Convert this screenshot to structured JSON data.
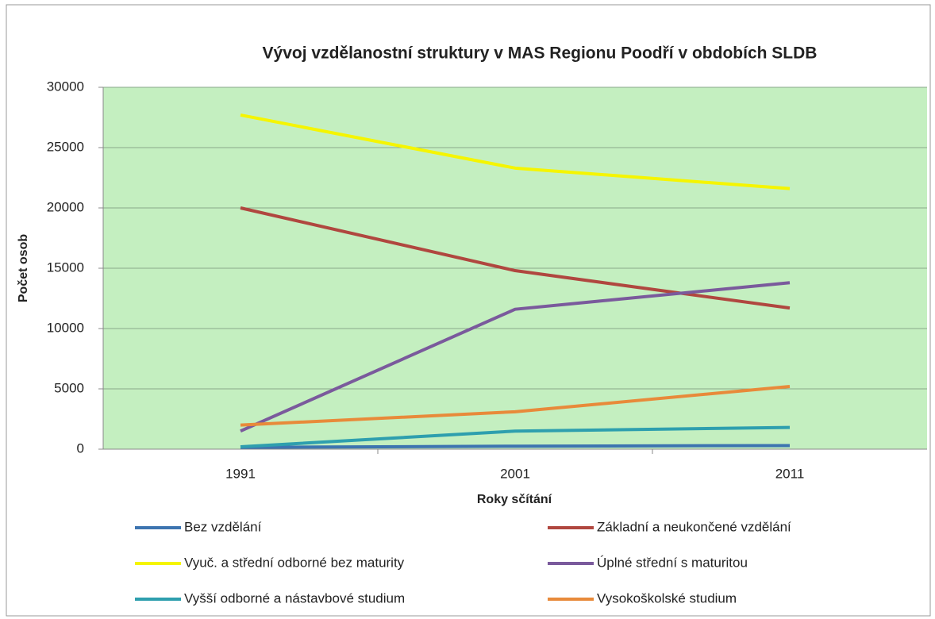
{
  "chart_data": {
    "type": "line",
    "title": "Vývoj vzdělanostní struktury v MAS Regionu Poodří v obdobích SLDB",
    "x_label": "Roky sčítání",
    "y_label": "Počet osob",
    "categories": [
      "1991",
      "2001",
      "2011"
    ],
    "series": [
      {
        "name": "Bez vzdělání",
        "color": "#3d74b0",
        "values": [
          150,
          250,
          300
        ]
      },
      {
        "name": "Základní a neukončené vzdělání",
        "color": "#b0473f",
        "values": [
          20000,
          14800,
          11700
        ]
      },
      {
        "name": "Vyuč. a střední odborné bez maturity",
        "color": "#f5f500",
        "values": [
          27700,
          23300,
          21600
        ]
      },
      {
        "name": "Úplné střední s maturitou",
        "color": "#7a5a9c",
        "values": [
          1500,
          11600,
          13800
        ]
      },
      {
        "name": "Vyšší odborné a nástavbové studium",
        "color": "#2e9fae",
        "values": [
          200,
          1500,
          1800
        ]
      },
      {
        "name": "Vysokoškolské studium",
        "color": "#e88a3a",
        "values": [
          2000,
          3100,
          5200
        ]
      }
    ],
    "ylim": [
      0,
      30000
    ],
    "yticks": [
      0,
      5000,
      10000,
      15000,
      20000,
      25000,
      30000
    ],
    "grid": true,
    "legend": "bottom",
    "plot_background": "#c4efc0"
  }
}
